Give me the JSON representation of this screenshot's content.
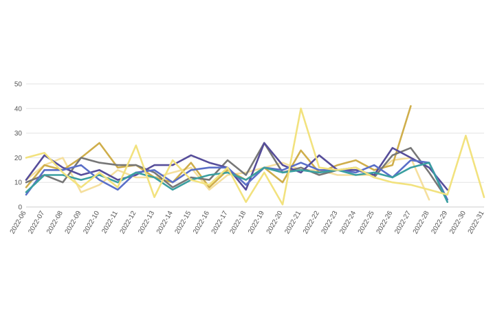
{
  "chart_data": {
    "type": "line",
    "title": "",
    "xlabel": "",
    "ylabel": "",
    "ylim": [
      0,
      50
    ],
    "yticks": [
      0,
      10,
      20,
      30,
      40,
      50
    ],
    "grid": true,
    "legend": "none",
    "categories": [
      "2022-06",
      "2022-07",
      "2022-08",
      "2022-09",
      "2022-10",
      "2022-11",
      "2022-12",
      "2022-13",
      "2022-14",
      "2022-15",
      "2022-16",
      "2022-17",
      "2022-18",
      "2022-19",
      "2022-20",
      "2022-21",
      "2022-22",
      "2022-23",
      "2022-24",
      "2022-25",
      "2022-26",
      "2022-27",
      "2022-28",
      "2022-29",
      "2022-30",
      "2022-31"
    ],
    "series": [
      {
        "color": "#f5df9e",
        "values": [
          11,
          17,
          20,
          6,
          9,
          15,
          12,
          12,
          14,
          16,
          7,
          13,
          14,
          16,
          18,
          15,
          15,
          13,
          13,
          13,
          19,
          20,
          3,
          null,
          null,
          null
        ]
      },
      {
        "color": "#cfae4b",
        "values": [
          8,
          17,
          15,
          20,
          26,
          16,
          17,
          12,
          10,
          18,
          8,
          15,
          11,
          16,
          10,
          23,
          14,
          17,
          19,
          15,
          17,
          41,
          null,
          null,
          null,
          null
        ]
      },
      {
        "color": "#777777",
        "values": [
          10,
          13,
          10,
          20,
          18,
          17,
          17,
          14,
          8,
          12,
          11,
          19,
          13,
          26,
          14,
          16,
          13,
          15,
          16,
          12,
          21,
          24,
          14,
          3,
          null,
          null
        ]
      },
      {
        "color": "#564d9a",
        "values": [
          11,
          21,
          16,
          13,
          15,
          11,
          13,
          17,
          17,
          21,
          18,
          16,
          7,
          26,
          17,
          14,
          21,
          15,
          15,
          13,
          24,
          20,
          16,
          7,
          null,
          null
        ]
      },
      {
        "color": "#5a6fc8",
        "values": [
          5,
          15,
          15,
          17,
          11,
          7,
          14,
          15,
          10,
          15,
          16,
          16,
          9,
          16,
          15,
          18,
          15,
          15,
          14,
          17,
          12,
          19,
          18,
          3,
          null,
          null
        ]
      },
      {
        "color": "#3a9fa0",
        "values": [
          6,
          13,
          13,
          11,
          13,
          10,
          14,
          12,
          7,
          11,
          13,
          14,
          11,
          16,
          14,
          15,
          14,
          15,
          13,
          14,
          12,
          16,
          18,
          2,
          null,
          null
        ]
      },
      {
        "color": "#f2e27e",
        "values": [
          20,
          22,
          14,
          8,
          14,
          8,
          25,
          4,
          19,
          11,
          9,
          16,
          2,
          14,
          1,
          40,
          16,
          15,
          16,
          12,
          10,
          9,
          7,
          5,
          29,
          4
        ]
      }
    ]
  }
}
